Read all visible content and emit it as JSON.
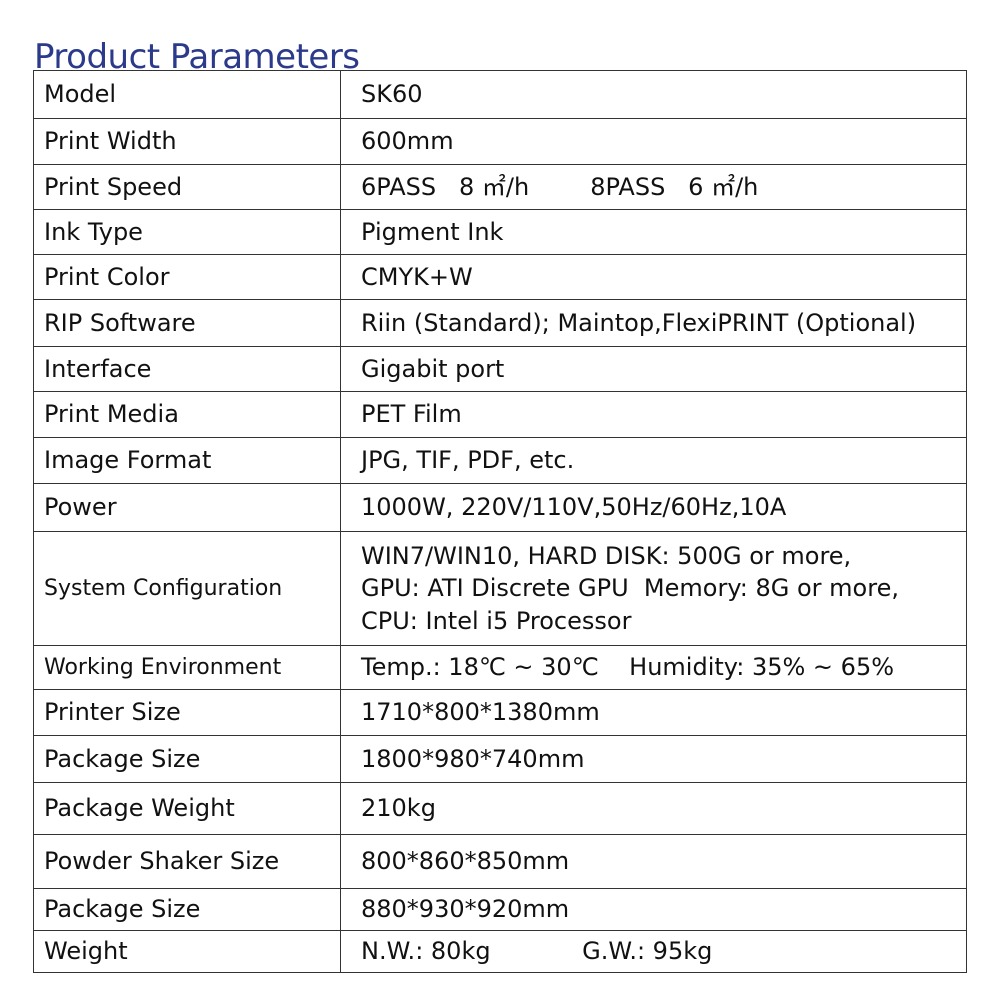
{
  "title": "Product Parameters",
  "rows": [
    {
      "label": "Model",
      "value": "SK60"
    },
    {
      "label": "Print Width",
      "value": "600mm"
    },
    {
      "label": "Print Speed",
      "value": "6PASS   8 ㎡/h        8PASS   6 ㎡/h"
    },
    {
      "label": "Ink Type",
      "value": "Pigment Ink"
    },
    {
      "label": "Print Color",
      "value": "CMYK+W"
    },
    {
      "label": "RIP Software",
      "value": "Riin (Standard); Maintop,FlexiPRINT (Optional)"
    },
    {
      "label": "Interface",
      "value": "Gigabit port"
    },
    {
      "label": "Print Media",
      "value": "PET Film"
    },
    {
      "label": "Image Format",
      "value": "JPG, TIF, PDF, etc."
    },
    {
      "label": "Power",
      "value": "1000W, 220V/110V,50Hz/60Hz,10A"
    },
    {
      "label": "System Configuration",
      "value": "WIN7/WIN10, HARD DISK: 500G or more,\nGPU: ATI Discrete GPU  Memory: 8G or more,\nCPU: Intel i5 Processor"
    },
    {
      "label": "Working Environment",
      "value": "Temp.: 18℃ ~ 30℃    Humidity: 35% ~ 65%"
    },
    {
      "label": "Printer Size",
      "value": "1710*800*1380mm"
    },
    {
      "label": "Package Size",
      "value": "1800*980*740mm"
    },
    {
      "label": "Package Weight",
      "value": "210kg"
    },
    {
      "label": "Powder Shaker Size",
      "value": "800*860*850mm"
    },
    {
      "label": "Package Size",
      "value": "880*930*920mm"
    },
    {
      "label": "Weight",
      "value": "N.W.: 80kg            G.W.: 95kg"
    }
  ]
}
